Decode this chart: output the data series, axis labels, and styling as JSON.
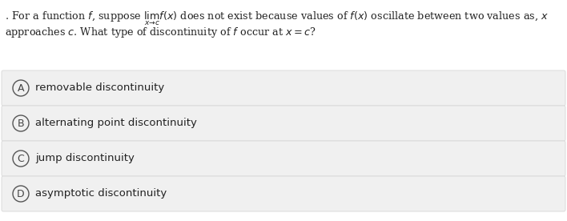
{
  "bg_color": "#ffffff",
  "question_line1": ". For a function $f$, suppose $\\lim_{x \\to c} f(x)$ does not exist because values of $f(x)$ oscillate between two values as, $x$",
  "question_line2": "approaches $c$. What type of discontinuity of $f$ occur at $x = c$?",
  "options": [
    {
      "label": "A",
      "text": "removable discontinuity"
    },
    {
      "label": "B",
      "text": "alternating point discontinuity"
    },
    {
      "label": "C",
      "text": "jump discontinuity"
    },
    {
      "label": "D",
      "text": "asymptotic discontinuity"
    }
  ],
  "option_bg": "#f0f0f0",
  "option_border": "#d8d8d8",
  "circle_edge_color": "#555555",
  "circle_face_color": "#f0f0f0",
  "text_color": "#222222",
  "label_color": "#444444",
  "font_size_question": 9.2,
  "font_size_options": 9.5,
  "font_size_label": 9.0
}
